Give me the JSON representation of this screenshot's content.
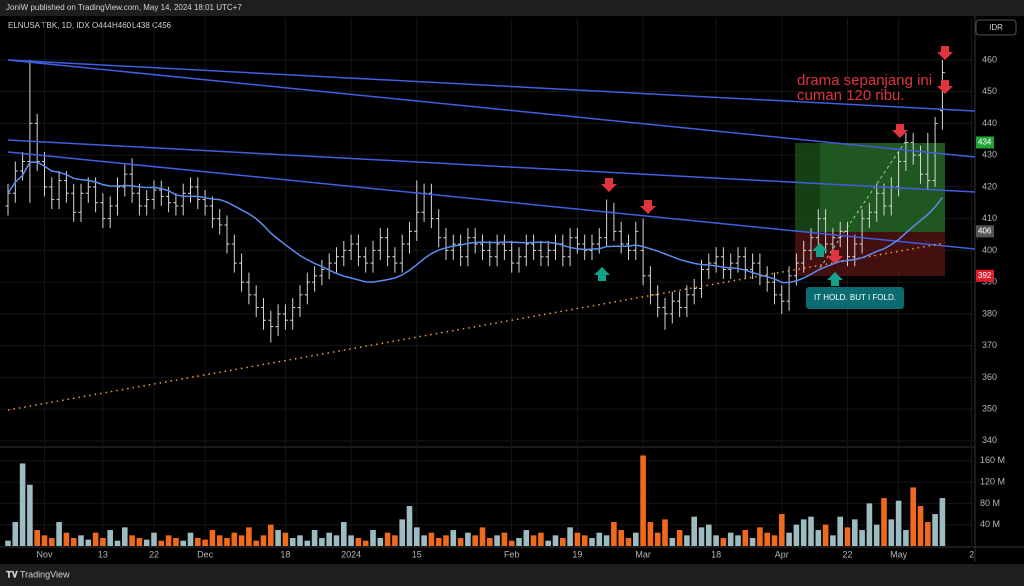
{
  "header": {
    "publisher": "JoniW published on TradingView.com, May 14, 2024 18:01 UTC+7"
  },
  "footer": {
    "brand": "TradingView"
  },
  "chart_data": {
    "type": "ohlc",
    "symbol": "ELNUSA TBK, 1D, IDX",
    "ohlc_legend": [
      "O444",
      "H460",
      "L438",
      "C456"
    ],
    "currency": "IDR",
    "categories": [
      null,
      null,
      null,
      null,
      null,
      "Nov",
      null,
      null,
      null,
      null,
      null,
      null,
      null,
      "13",
      null,
      null,
      null,
      null,
      null,
      null,
      "22",
      null,
      null,
      null,
      null,
      null,
      null,
      "Dec",
      null,
      null,
      null,
      null,
      null,
      null,
      null,
      null,
      null,
      null,
      "18",
      null,
      null,
      null,
      null,
      null,
      null,
      null,
      null,
      "2024",
      null,
      null,
      null,
      null,
      null,
      null,
      null,
      null,
      "15",
      null,
      null,
      null,
      null,
      null,
      null,
      null,
      null,
      null,
      null,
      null,
      null,
      "Feb",
      null,
      null,
      null,
      null,
      null,
      null,
      null,
      null,
      "19",
      null,
      null,
      null,
      null,
      null,
      null,
      null,
      null,
      "Mar",
      null,
      null,
      null,
      null,
      null,
      null,
      null,
      null,
      null,
      "18",
      null,
      null,
      null,
      null,
      null,
      null,
      null,
      null,
      "Apr",
      null,
      null,
      null,
      null,
      null,
      null,
      null,
      null,
      "22",
      null,
      null,
      null,
      null,
      null,
      null,
      "May",
      null,
      null,
      null,
      null,
      null,
      null,
      null,
      null,
      null,
      "2"
    ],
    "open": [
      414,
      418,
      425,
      428,
      440,
      428,
      420,
      416,
      422,
      418,
      412,
      418,
      420,
      415,
      410,
      414,
      420,
      424,
      418,
      414,
      416,
      419,
      417,
      415,
      414,
      418,
      420,
      416,
      414,
      410,
      408,
      402,
      396,
      390,
      386,
      382,
      378,
      376,
      380,
      378,
      382,
      386,
      390,
      392,
      394,
      396,
      398,
      400,
      402,
      398,
      396,
      400,
      404,
      398,
      396,
      402,
      406,
      412,
      418,
      410,
      404,
      400,
      402,
      398,
      404,
      402,
      400,
      398,
      402,
      400,
      396,
      398,
      402,
      400,
      398,
      400,
      402,
      398,
      404,
      402,
      400,
      402,
      404,
      412,
      406,
      402,
      400,
      400,
      392,
      386,
      382,
      380,
      384,
      382,
      386,
      388,
      394,
      396,
      398,
      394,
      396,
      398,
      394,
      396,
      392,
      390,
      386,
      384,
      392,
      396,
      400,
      404,
      410,
      402,
      404,
      406,
      398,
      402,
      410,
      412,
      418,
      414,
      420,
      428,
      434,
      430,
      424,
      422,
      444,
      null,
      null,
      null,
      null
    ],
    "high": [
      421,
      428,
      431,
      460,
      443,
      431,
      423,
      425,
      425,
      421,
      421,
      423,
      423,
      418,
      417,
      423,
      427,
      429,
      421,
      419,
      422,
      422,
      420,
      418,
      421,
      423,
      423,
      419,
      417,
      413,
      411,
      405,
      399,
      393,
      389,
      385,
      381,
      383,
      383,
      385,
      389,
      393,
      395,
      397,
      399,
      401,
      403,
      405,
      405,
      401,
      403,
      407,
      407,
      401,
      405,
      409,
      422,
      421,
      421,
      413,
      407,
      405,
      405,
      407,
      407,
      405,
      403,
      405,
      405,
      403,
      401,
      405,
      405,
      403,
      403,
      405,
      405,
      407,
      407,
      405,
      405,
      407,
      416,
      415,
      409,
      405,
      409,
      410,
      395,
      389,
      385,
      387,
      387,
      389,
      391,
      397,
      399,
      401,
      401,
      399,
      401,
      401,
      399,
      399,
      395,
      393,
      389,
      395,
      399,
      403,
      407,
      413,
      413,
      407,
      409,
      409,
      405,
      413,
      415,
      421,
      421,
      423,
      431,
      437,
      437,
      433,
      437,
      442,
      460,
      null,
      null,
      null,
      null
    ],
    "low": [
      411,
      415,
      422,
      415,
      425,
      417,
      413,
      413,
      415,
      409,
      409,
      415,
      412,
      407,
      407,
      411,
      417,
      415,
      411,
      411,
      413,
      414,
      412,
      411,
      411,
      415,
      413,
      411,
      407,
      405,
      399,
      393,
      387,
      383,
      379,
      375,
      371,
      373,
      375,
      375,
      379,
      383,
      387,
      389,
      391,
      393,
      395,
      397,
      395,
      393,
      393,
      397,
      395,
      393,
      393,
      399,
      403,
      409,
      407,
      401,
      397,
      397,
      395,
      395,
      399,
      397,
      395,
      395,
      397,
      393,
      393,
      395,
      397,
      395,
      395,
      397,
      395,
      395,
      399,
      397,
      397,
      399,
      401,
      403,
      399,
      397,
      397,
      389,
      383,
      379,
      375,
      377,
      379,
      379,
      383,
      385,
      391,
      393,
      391,
      391,
      393,
      391,
      391,
      389,
      387,
      383,
      380,
      381,
      389,
      393,
      397,
      401,
      399,
      399,
      401,
      395,
      395,
      399,
      407,
      409,
      411,
      411,
      417,
      425,
      427,
      421,
      419,
      420,
      438,
      null,
      null,
      null,
      null
    ],
    "close": [
      418,
      425,
      428,
      440,
      428,
      420,
      416,
      422,
      418,
      412,
      418,
      420,
      415,
      410,
      414,
      420,
      424,
      418,
      414,
      416,
      419,
      417,
      415,
      414,
      418,
      420,
      416,
      414,
      410,
      408,
      402,
      396,
      390,
      386,
      382,
      378,
      376,
      380,
      378,
      382,
      386,
      390,
      392,
      394,
      396,
      398,
      400,
      402,
      398,
      396,
      400,
      404,
      398,
      396,
      402,
      406,
      412,
      418,
      410,
      404,
      400,
      402,
      398,
      404,
      402,
      400,
      398,
      402,
      400,
      396,
      398,
      402,
      400,
      398,
      400,
      402,
      398,
      404,
      402,
      400,
      402,
      404,
      412,
      406,
      402,
      400,
      406,
      392,
      386,
      382,
      380,
      384,
      382,
      386,
      388,
      394,
      396,
      398,
      394,
      396,
      398,
      394,
      396,
      392,
      390,
      386,
      384,
      392,
      396,
      400,
      404,
      410,
      402,
      404,
      406,
      398,
      402,
      410,
      412,
      418,
      414,
      420,
      428,
      434,
      430,
      424,
      422,
      440,
      456,
      null,
      null,
      null,
      null
    ],
    "volume": [
      10,
      45,
      155,
      115,
      30,
      20,
      15,
      45,
      25,
      15,
      20,
      12,
      25,
      15,
      30,
      10,
      35,
      20,
      15,
      12,
      25,
      10,
      20,
      15,
      10,
      25,
      15,
      12,
      30,
      20,
      15,
      25,
      20,
      35,
      10,
      20,
      40,
      30,
      25,
      15,
      20,
      10,
      30,
      15,
      25,
      20,
      45,
      20,
      15,
      10,
      30,
      15,
      25,
      20,
      50,
      75,
      35,
      20,
      25,
      15,
      20,
      30,
      15,
      25,
      20,
      35,
      15,
      20,
      25,
      10,
      15,
      30,
      20,
      25,
      10,
      20,
      15,
      35,
      25,
      20,
      15,
      25,
      20,
      45,
      30,
      15,
      25,
      170,
      45,
      25,
      50,
      15,
      30,
      20,
      55,
      35,
      40,
      20,
      15,
      25,
      20,
      30,
      15,
      35,
      25,
      20,
      60,
      25,
      40,
      50,
      55,
      30,
      40,
      20,
      55,
      35,
      50,
      30,
      80,
      40,
      90,
      50,
      85,
      30,
      110,
      75,
      45,
      60,
      90,
      null,
      null,
      null,
      null
    ],
    "bar_color": "#d6d6d6",
    "volume_up_color": "#9cbcc2",
    "volume_down_color": "#f06a1e",
    "ylim": [
      338.7,
      473.2
    ],
    "yticks": [
      340,
      350,
      360,
      370,
      380,
      390,
      400,
      410,
      420,
      430,
      440,
      450,
      460
    ],
    "volume_ylim": [
      0,
      184
    ],
    "volume_ticks": [
      {
        "value": 40,
        "label": "40 M"
      },
      {
        "value": 80,
        "label": "80 M"
      },
      {
        "value": 120,
        "label": "120 M"
      },
      {
        "value": 160,
        "label": "160 M"
      }
    ],
    "price_tags": [
      {
        "value": 434,
        "color": "#22a33a"
      },
      {
        "value": 406,
        "color": "#555555"
      },
      {
        "value": 392,
        "color": "#e01e2b"
      }
    ],
    "annotations": [
      "drama sepanjang ini",
      "cuman 120 ribu.",
      "IT HOLD. BUT I FOLD."
    ],
    "grid": true
  }
}
